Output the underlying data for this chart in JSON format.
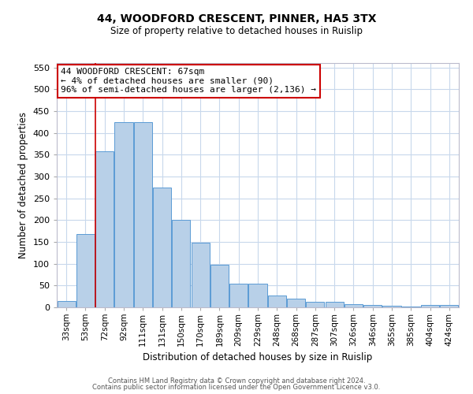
{
  "title": "44, WOODFORD CRESCENT, PINNER, HA5 3TX",
  "subtitle": "Size of property relative to detached houses in Ruislip",
  "xlabel": "Distribution of detached houses by size in Ruislip",
  "ylabel": "Number of detached properties",
  "categories": [
    "33sqm",
    "53sqm",
    "72sqm",
    "92sqm",
    "111sqm",
    "131sqm",
    "150sqm",
    "170sqm",
    "189sqm",
    "209sqm",
    "229sqm",
    "248sqm",
    "268sqm",
    "287sqm",
    "307sqm",
    "326sqm",
    "346sqm",
    "365sqm",
    "385sqm",
    "404sqm",
    "424sqm"
  ],
  "values": [
    15,
    168,
    357,
    425,
    425,
    275,
    200,
    148,
    97,
    55,
    55,
    28,
    20,
    12,
    13,
    7,
    5,
    4,
    1,
    5,
    5
  ],
  "bar_color": "#b8d0e8",
  "bar_edge_color": "#5b9bd5",
  "annotation_text": "44 WOODFORD CRESCENT: 67sqm\n← 4% of detached houses are smaller (90)\n96% of semi-detached houses are larger (2,136) →",
  "annotation_box_color": "#ffffff",
  "annotation_box_edge_color": "#cc0000",
  "redline_color": "#cc0000",
  "ylim": [
    0,
    560
  ],
  "yticks": [
    0,
    50,
    100,
    150,
    200,
    250,
    300,
    350,
    400,
    450,
    500,
    550
  ],
  "footer_line1": "Contains HM Land Registry data © Crown copyright and database right 2024.",
  "footer_line2": "Contains public sector information licensed under the Open Government Licence v3.0.",
  "background_color": "#ffffff",
  "grid_color": "#c8d8ec"
}
